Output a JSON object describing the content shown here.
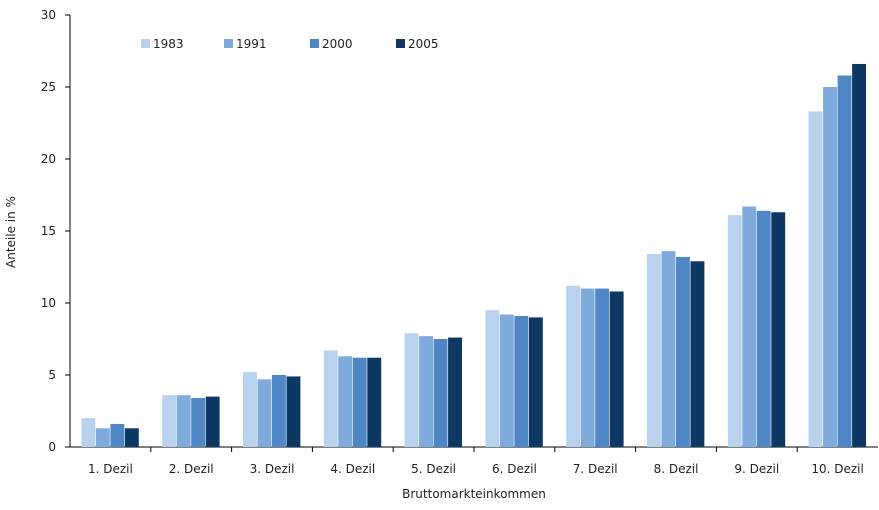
{
  "chart_data": {
    "type": "bar",
    "title": "",
    "xlabel": "Bruttomarkteinkommen",
    "ylabel": "Anteile in %",
    "ylim": [
      0,
      30
    ],
    "yticks": [
      0,
      5,
      10,
      15,
      20,
      25,
      30
    ],
    "grid": false,
    "legend_position": "top-left",
    "categories": [
      "1. Dezil",
      "2. Dezil",
      "3. Dezil",
      "4. Dezil",
      "5. Dezil",
      "6. Dezil",
      "7. Dezil",
      "8. Dezil",
      "9. Dezil",
      "10. Dezil"
    ],
    "series": [
      {
        "name": "1983",
        "color": "#b8d2ee",
        "values": [
          2.0,
          3.6,
          5.2,
          6.7,
          7.9,
          9.5,
          11.2,
          13.4,
          16.1,
          23.3
        ]
      },
      {
        "name": "1991",
        "color": "#7eaadc",
        "values": [
          1.3,
          3.6,
          4.7,
          6.3,
          7.7,
          9.2,
          11.0,
          13.6,
          16.7,
          25.0
        ]
      },
      {
        "name": "2000",
        "color": "#4f86c6",
        "values": [
          1.6,
          3.4,
          5.0,
          6.2,
          7.5,
          9.1,
          11.0,
          13.2,
          16.4,
          25.8
        ]
      },
      {
        "name": "2005",
        "color": "#0d3864",
        "values": [
          1.3,
          3.5,
          4.9,
          6.2,
          7.6,
          9.0,
          10.8,
          12.9,
          16.3,
          26.6
        ]
      }
    ]
  }
}
